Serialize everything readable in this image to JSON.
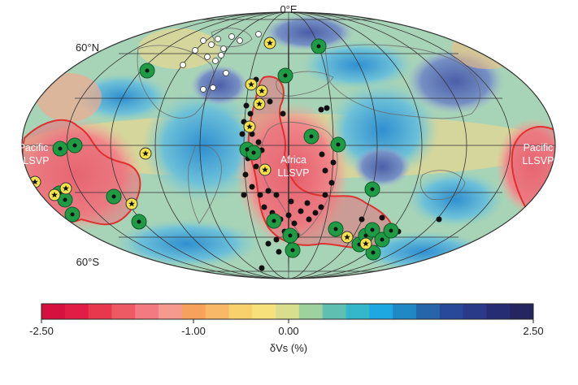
{
  "map": {
    "labels": {
      "lon0": "0°E",
      "lat60n": "60°N",
      "lat60s": "60°S",
      "pacific_left_1": "Pacific",
      "pacific_left_2": "LLSVP",
      "africa_1": "Africa",
      "africa_2": "LLSVP",
      "pacific_right_1": "Pacific",
      "pacific_right_2": "LLSVP"
    },
    "colors": {
      "slow_red": "#e8707a",
      "fast_blue": "#3fa3d6",
      "neutral_yellow": "#f2d98a",
      "llsvp_outline": "#e03030",
      "hotspot_green": "#1f9a45",
      "hotspot_star": "#f5e34b"
    }
  },
  "colorbar": {
    "colors": [
      "#d7113f",
      "#e11d45",
      "#e8384e",
      "#ee5a63",
      "#f27a80",
      "#f49a8f",
      "#f6a25c",
      "#f8b868",
      "#f8d06c",
      "#f7e17a",
      "#d7de8e",
      "#9dd19e",
      "#5fc0b2",
      "#33b7c9",
      "#1ea8e1",
      "#2088c4",
      "#2466a9",
      "#28499a",
      "#283a88",
      "#272d73",
      "#25265f"
    ],
    "ticks": [
      "-2.50",
      "-1.00",
      "0.00",
      "2.50"
    ],
    "label": "δVs (%)"
  }
}
